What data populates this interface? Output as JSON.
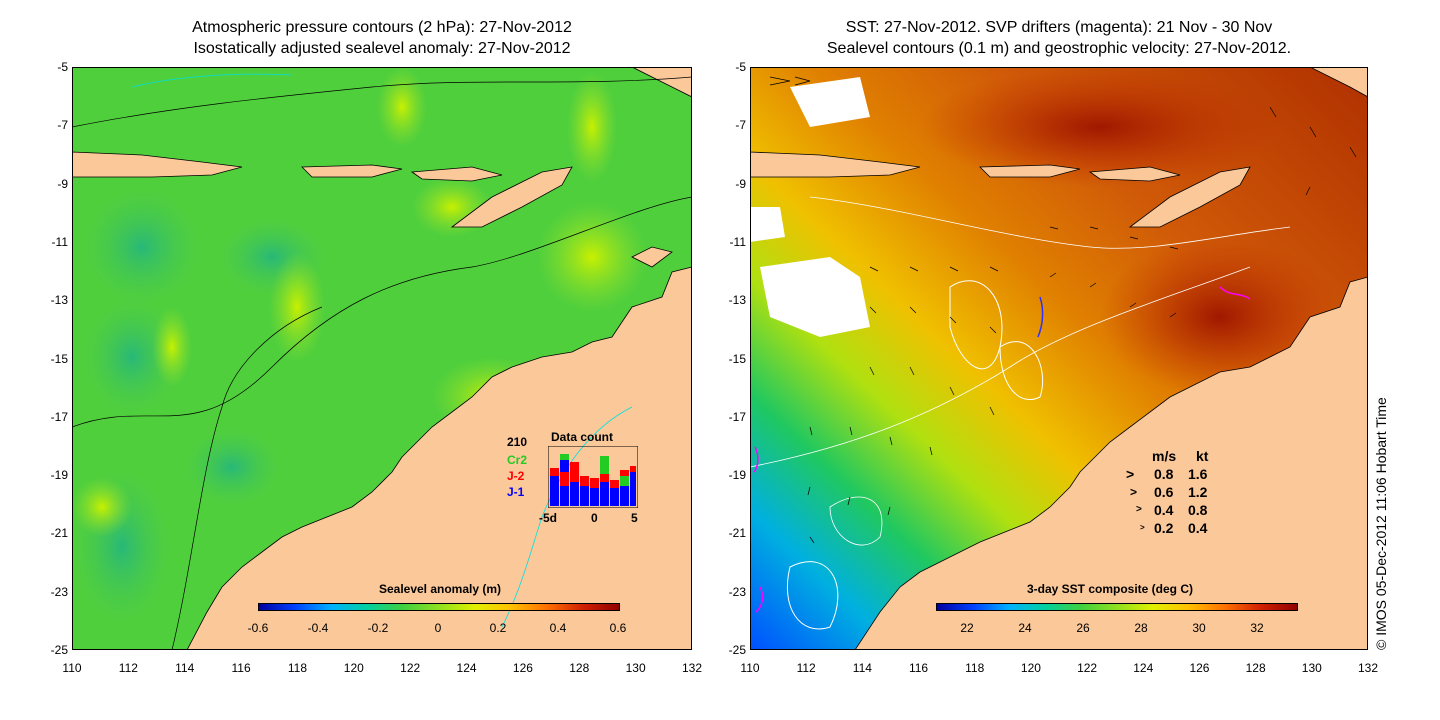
{
  "left_panel": {
    "title_line1": "Atmospheric pressure contours (2 hPa): 27-Nov-2012",
    "title_line2": "Isostatically adjusted sealevel anomaly: 27-Nov-2012",
    "colorbar_title": "Sealevel anomaly (m)",
    "colorbar_ticks": [
      "-0.6",
      "-0.4",
      "-0.2",
      "0",
      "0.2",
      "0.4",
      "0.6"
    ],
    "inset": {
      "total": "210",
      "title": "Data count",
      "series": [
        {
          "name": "Cr2",
          "color": "#22cc22"
        },
        {
          "name": "J-2",
          "color": "#ff0000"
        },
        {
          "name": "J-1",
          "color": "#0000ff"
        }
      ],
      "x_ticks": [
        "-5d",
        "0",
        "5"
      ]
    }
  },
  "right_panel": {
    "title_line1": "SST: 27-Nov-2012. SVP drifters (magenta): 21 Nov - 30 Nov",
    "title_line2": "Sealevel contours (0.1 m) and geostrophic velocity: 27-Nov-2012.",
    "colorbar_title": "3-day SST composite (deg C)",
    "colorbar_ticks": [
      "22",
      "24",
      "26",
      "28",
      "30",
      "32"
    ],
    "legend": {
      "header_ms": "m/s",
      "header_kt": "kt",
      "rows": [
        {
          "ms": "0.8",
          "kt": "1.6"
        },
        {
          "ms": "0.6",
          "kt": "1.2"
        },
        {
          "ms": "0.4",
          "kt": "0.8"
        },
        {
          "ms": "0.2",
          "kt": "0.4"
        }
      ]
    }
  },
  "axes": {
    "y_ticks": [
      "-5",
      "-7",
      "-9",
      "-11",
      "-13",
      "-15",
      "-17",
      "-19",
      "-21",
      "-23",
      "-25"
    ],
    "x_ticks": [
      "110",
      "112",
      "114",
      "116",
      "118",
      "120",
      "122",
      "124",
      "126",
      "128",
      "130",
      "132"
    ]
  },
  "credit": "© IMOS 05-Dec-2012 11:06 Hobart Time",
  "colors": {
    "land": "#fbc89a",
    "sla_green": "#4ccf3a",
    "sst_orange": "#d9640a"
  }
}
